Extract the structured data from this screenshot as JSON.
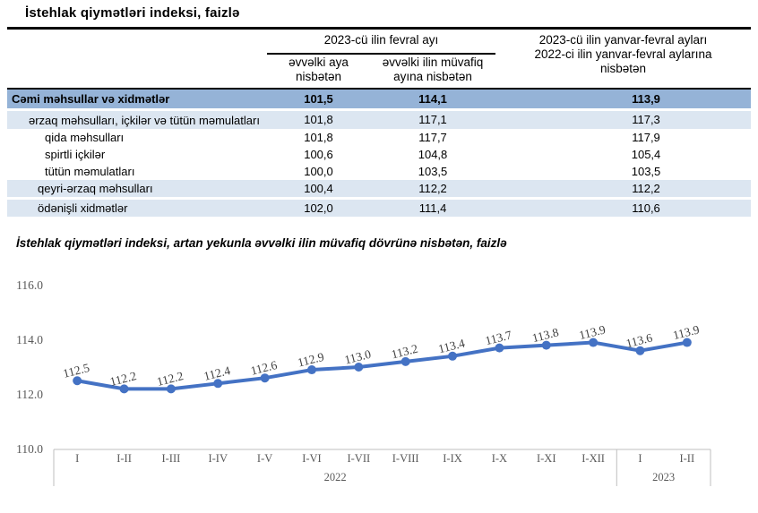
{
  "page": {
    "title": "İstehlak qiymətləri indeksi, faizlə",
    "chart_section_title": "İstehlak qiymətləri indeksi, artan yekunla əvvəlki ilin müvafiq dövrünə nisbətən, faizlə"
  },
  "table": {
    "header": {
      "group": "2023-cü ilin fevral ayı",
      "col2": "əvvəlki aya nisbətən",
      "col3": "əvvəlki ilin müvafiq ayına nisbətən",
      "col4_line1": "2023-cü ilin yanvar-fevral ayları",
      "col4_line2": "2022-ci ilin yanvar-fevral aylarına nisbətən"
    },
    "rows": [
      {
        "label": "Cəmi məhsullar və xidmətlər",
        "v1": "101,5",
        "v2": "114,1",
        "v3": "113,9"
      },
      {
        "label": "ərzaq məhsulları, içkilər və tütün məmulatları",
        "v1": "101,8",
        "v2": "117,1",
        "v3": "117,3"
      },
      {
        "label": "qida məhsulları",
        "v1": "101,8",
        "v2": "117,7",
        "v3": "117,9"
      },
      {
        "label": "spirtli içkilər",
        "v1": "100,6",
        "v2": "104,8",
        "v3": "105,4"
      },
      {
        "label": "tütün məmulatları",
        "v1": "100,0",
        "v2": "103,5",
        "v3": "103,5"
      },
      {
        "label": "qeyri-ərzaq məhsulları",
        "v1": "100,4",
        "v2": "112,2",
        "v3": "112,2"
      },
      {
        "label": "ödənişli xidmətlər",
        "v1": "102,0",
        "v2": "111,4",
        "v3": "110,6"
      }
    ],
    "colors": {
      "total_row_bg": "#95B3D7",
      "shaded_row_bg": "#DCE6F1"
    }
  },
  "chart_data": {
    "type": "line",
    "title": "İstehlak qiymətləri indeksi, artan yekunla əvvəlki ilin müvafiq dövrünə nisbətən, faizlə",
    "categories": [
      "I",
      "I-II",
      "I-III",
      "I-IV",
      "I-V",
      "I-VI",
      "I-VII",
      "I-VIII",
      "I-IX",
      "I-X",
      "I-XI",
      "I-XII",
      "I",
      "I-II"
    ],
    "year_groups": [
      {
        "label": "2022",
        "span": 12
      },
      {
        "label": "2023",
        "span": 2
      }
    ],
    "series": [
      {
        "name": "İstehlak qiymətləri indeksi",
        "values": [
          112.5,
          112.2,
          112.2,
          112.4,
          112.6,
          112.9,
          113.0,
          113.2,
          113.4,
          113.7,
          113.8,
          113.9,
          113.6,
          113.9
        ]
      }
    ],
    "ylim": [
      110.0,
      116.0
    ],
    "yticks": [
      116.0,
      114.0,
      112.0,
      110.0
    ],
    "grid": false,
    "legend": false,
    "colors": {
      "line": "#4472C4",
      "marker": "#4472C4",
      "data_label": "#404040",
      "axis_line": "#BFBFBF",
      "tick_text": "#595959"
    }
  }
}
